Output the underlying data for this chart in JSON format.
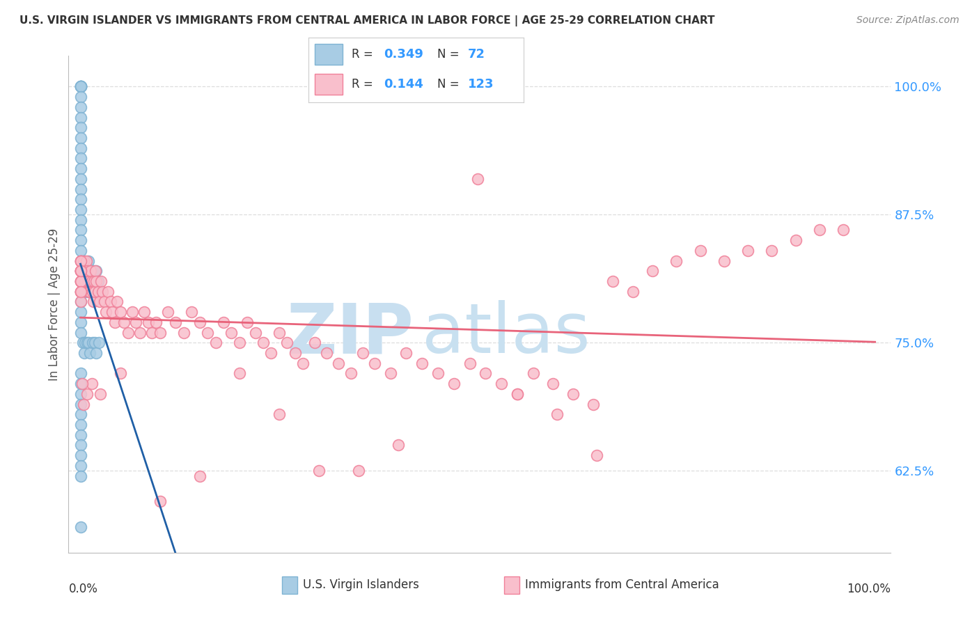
{
  "title": "U.S. VIRGIN ISLANDER VS IMMIGRANTS FROM CENTRAL AMERICA IN LABOR FORCE | AGE 25-29 CORRELATION CHART",
  "source": "Source: ZipAtlas.com",
  "ylabel": "In Labor Force | Age 25-29",
  "yticks": [
    0.625,
    0.75,
    0.875,
    1.0
  ],
  "ytick_labels": [
    "62.5%",
    "75.0%",
    "87.5%",
    "100.0%"
  ],
  "legend_blue_R": "0.349",
  "legend_blue_N": "72",
  "legend_pink_R": "0.144",
  "legend_pink_N": "123",
  "legend_label_blue": "U.S. Virgin Islanders",
  "legend_label_pink": "Immigrants from Central America",
  "blue_scatter_color": "#a8cce4",
  "pink_scatter_color": "#f9bfcc",
  "blue_edge_color": "#7fb3d3",
  "pink_edge_color": "#f08099",
  "blue_line_color": "#1f5fa6",
  "pink_line_color": "#e8637a",
  "watermark_zip_color": "#c8dff0",
  "watermark_atlas_color": "#c8e0f0",
  "title_color": "#333333",
  "source_color": "#888888",
  "ylabel_color": "#555555",
  "ytick_color": "#3399ff",
  "xtick_color": "#333333",
  "grid_color": "#dddddd",
  "blue_scatter_x": [
    0.0,
    0.0,
    0.0,
    0.0,
    0.0,
    0.0,
    0.0,
    0.0,
    0.0,
    0.0,
    0.0,
    0.0,
    0.0,
    0.0,
    0.0,
    0.0,
    0.0,
    0.0,
    0.0,
    0.0,
    0.0,
    0.0,
    0.0,
    0.0,
    0.0,
    0.0,
    0.0,
    0.0,
    0.0,
    0.0,
    0.003,
    0.004,
    0.005,
    0.006,
    0.007,
    0.008,
    0.009,
    0.01,
    0.011,
    0.012,
    0.013,
    0.014,
    0.015,
    0.016,
    0.017,
    0.018,
    0.019,
    0.02,
    0.022,
    0.025,
    0.003,
    0.005,
    0.006,
    0.008,
    0.01,
    0.012,
    0.015,
    0.018,
    0.02,
    0.023,
    0.0,
    0.0,
    0.0,
    0.0,
    0.0,
    0.0,
    0.0,
    0.0,
    0.0,
    0.0,
    0.0,
    0.0
  ],
  "blue_scatter_y": [
    1.0,
    1.0,
    1.0,
    1.0,
    1.0,
    1.0,
    0.99,
    0.98,
    0.97,
    0.96,
    0.95,
    0.94,
    0.93,
    0.92,
    0.91,
    0.9,
    0.89,
    0.88,
    0.87,
    0.86,
    0.85,
    0.84,
    0.83,
    0.82,
    0.81,
    0.8,
    0.79,
    0.78,
    0.77,
    0.76,
    0.83,
    0.82,
    0.81,
    0.8,
    0.82,
    0.81,
    0.8,
    0.83,
    0.82,
    0.81,
    0.8,
    0.82,
    0.81,
    0.8,
    0.82,
    0.81,
    0.8,
    0.82,
    0.81,
    0.8,
    0.75,
    0.74,
    0.75,
    0.75,
    0.75,
    0.74,
    0.75,
    0.75,
    0.74,
    0.75,
    0.72,
    0.71,
    0.7,
    0.69,
    0.68,
    0.67,
    0.66,
    0.65,
    0.64,
    0.63,
    0.62,
    0.57
  ],
  "pink_scatter_x": [
    0.0,
    0.0,
    0.0,
    0.0,
    0.0,
    0.0,
    0.0,
    0.0,
    0.0,
    0.0,
    0.004,
    0.005,
    0.006,
    0.007,
    0.008,
    0.009,
    0.01,
    0.011,
    0.012,
    0.013,
    0.014,
    0.015,
    0.016,
    0.017,
    0.018,
    0.019,
    0.02,
    0.022,
    0.024,
    0.026,
    0.028,
    0.03,
    0.032,
    0.035,
    0.038,
    0.04,
    0.043,
    0.046,
    0.05,
    0.055,
    0.06,
    0.065,
    0.07,
    0.075,
    0.08,
    0.085,
    0.09,
    0.095,
    0.1,
    0.11,
    0.12,
    0.13,
    0.14,
    0.15,
    0.16,
    0.17,
    0.18,
    0.19,
    0.2,
    0.21,
    0.22,
    0.23,
    0.24,
    0.25,
    0.26,
    0.27,
    0.28,
    0.295,
    0.31,
    0.325,
    0.34,
    0.355,
    0.37,
    0.39,
    0.41,
    0.43,
    0.45,
    0.47,
    0.49,
    0.51,
    0.53,
    0.55,
    0.57,
    0.595,
    0.62,
    0.645,
    0.67,
    0.695,
    0.72,
    0.75,
    0.78,
    0.81,
    0.84,
    0.87,
    0.9,
    0.93,
    0.96,
    0.65,
    0.5,
    0.55,
    0.6,
    0.4,
    0.35,
    0.3,
    0.25,
    0.2,
    0.15,
    0.1,
    0.05,
    0.025,
    0.014,
    0.008,
    0.004,
    0.002,
    0.0,
    0.0,
    0.0,
    0.0,
    0.0,
    0.0,
    0.0,
    0.0,
    0.0
  ],
  "pink_scatter_y": [
    0.83,
    0.82,
    0.83,
    0.82,
    0.81,
    0.82,
    0.83,
    0.81,
    0.8,
    0.82,
    0.83,
    0.82,
    0.81,
    0.83,
    0.82,
    0.81,
    0.8,
    0.81,
    0.8,
    0.82,
    0.81,
    0.8,
    0.79,
    0.81,
    0.8,
    0.82,
    0.81,
    0.8,
    0.79,
    0.81,
    0.8,
    0.79,
    0.78,
    0.8,
    0.79,
    0.78,
    0.77,
    0.79,
    0.78,
    0.77,
    0.76,
    0.78,
    0.77,
    0.76,
    0.78,
    0.77,
    0.76,
    0.77,
    0.76,
    0.78,
    0.77,
    0.76,
    0.78,
    0.77,
    0.76,
    0.75,
    0.77,
    0.76,
    0.75,
    0.77,
    0.76,
    0.75,
    0.74,
    0.76,
    0.75,
    0.74,
    0.73,
    0.75,
    0.74,
    0.73,
    0.72,
    0.74,
    0.73,
    0.72,
    0.74,
    0.73,
    0.72,
    0.71,
    0.73,
    0.72,
    0.71,
    0.7,
    0.72,
    0.71,
    0.7,
    0.69,
    0.81,
    0.8,
    0.82,
    0.83,
    0.84,
    0.83,
    0.84,
    0.84,
    0.85,
    0.86,
    0.86,
    0.64,
    0.91,
    0.7,
    0.68,
    0.65,
    0.625,
    0.625,
    0.68,
    0.72,
    0.62,
    0.595,
    0.72,
    0.7,
    0.71,
    0.7,
    0.69,
    0.71,
    0.8,
    0.81,
    0.82,
    0.8,
    0.79,
    0.81,
    0.83,
    0.82,
    0.8
  ]
}
